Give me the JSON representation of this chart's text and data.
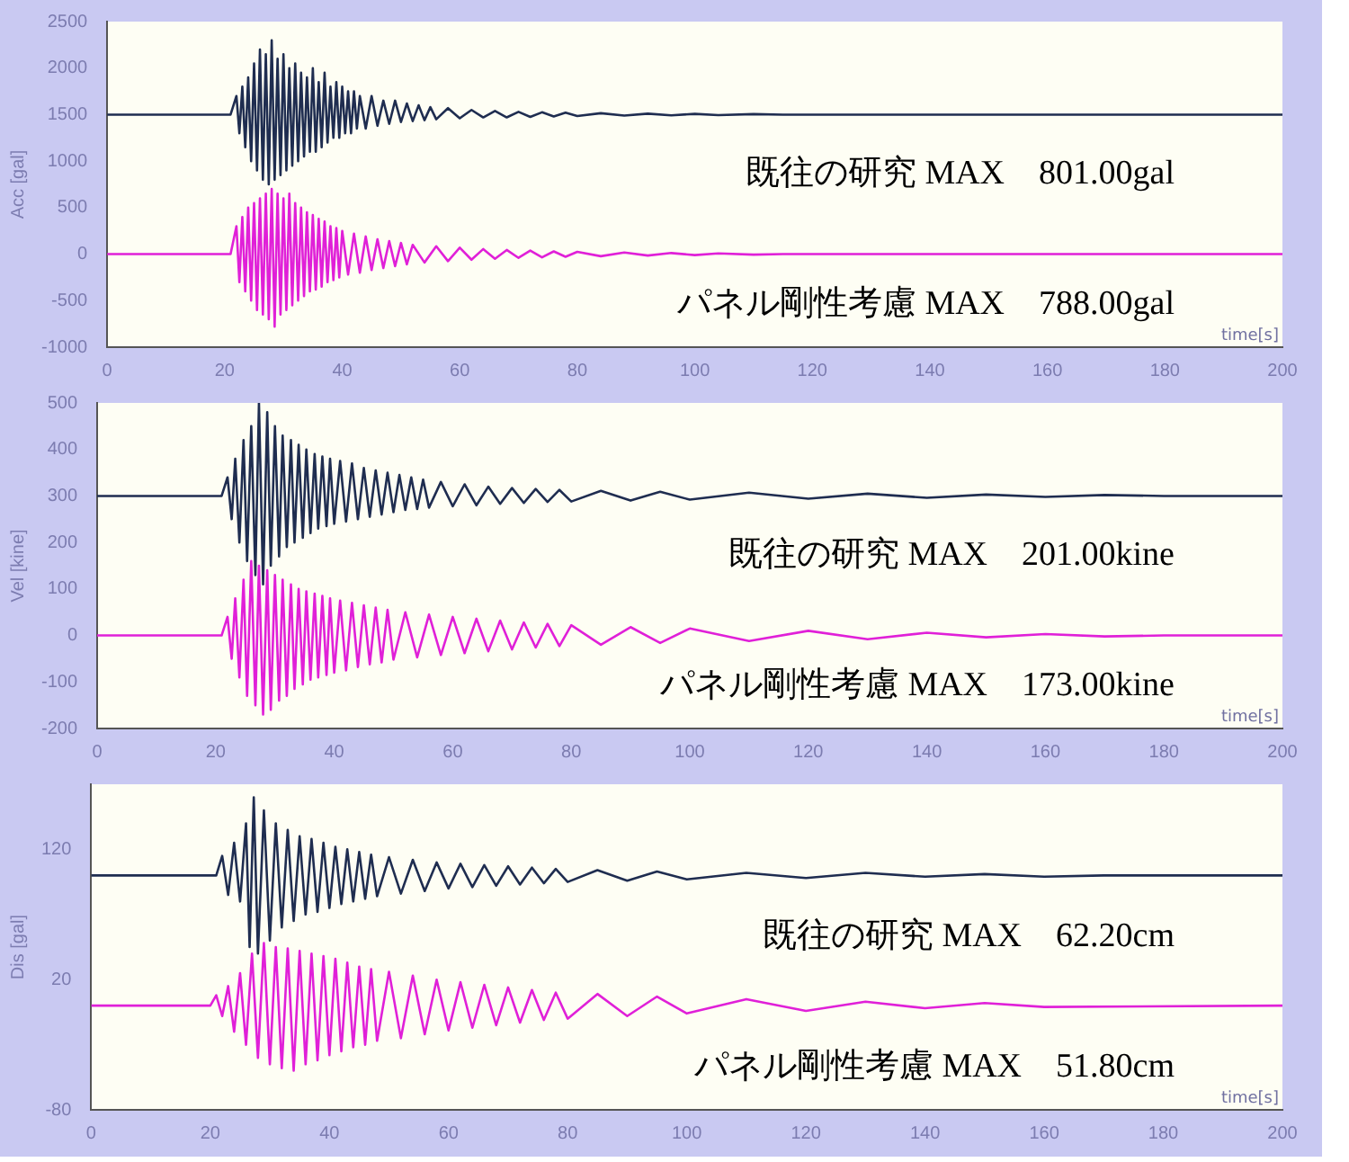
{
  "chart_data": [
    {
      "type": "line",
      "xlabel": "time[s]",
      "ylabel": "Acc [gal]",
      "xlim": [
        0,
        200
      ],
      "xticks": [
        0,
        20,
        40,
        60,
        80,
        100,
        120,
        140,
        160,
        180,
        200
      ],
      "ylim": [
        -1000,
        2500
      ],
      "yticks": [
        -1000,
        -500,
        0,
        500,
        1000,
        1500,
        2000,
        2500
      ],
      "marker": "none",
      "line_style": "solid",
      "annotations": [
        "既往の研究 MAX　801.00gal",
        "パネル剛性考慮 MAX　788.00gal"
      ],
      "series": [
        {
          "color": "#1f2d50",
          "x": [
            0,
            21,
            22,
            22.5,
            23,
            23.5,
            24,
            24.5,
            25,
            25.5,
            26,
            26.5,
            27,
            27.5,
            28,
            28.5,
            29,
            29.5,
            30,
            30.5,
            31,
            31.5,
            32,
            32.5,
            33,
            33.5,
            34,
            34.5,
            35,
            35.5,
            36,
            36.5,
            37,
            37.5,
            38,
            38.5,
            39,
            39.5,
            40,
            40.5,
            41,
            41.5,
            42,
            42.5,
            43,
            44,
            45,
            46,
            47,
            48,
            49,
            50,
            51,
            52,
            53,
            54,
            55,
            56,
            58,
            60,
            62,
            64,
            66,
            68,
            70,
            72,
            74,
            76,
            78,
            80,
            84,
            88,
            92,
            96,
            100,
            104,
            110,
            115,
            200
          ],
          "values": [
            1500,
            1500,
            1700,
            1300,
            1800,
            1150,
            1900,
            1000,
            2050,
            900,
            2200,
            800,
            2150,
            750,
            2300,
            800,
            2100,
            850,
            2150,
            900,
            2000,
            950,
            2050,
            1000,
            1950,
            1050,
            1900,
            1100,
            2000,
            1100,
            1850,
            1150,
            1950,
            1200,
            1800,
            1250,
            1850,
            1250,
            1800,
            1300,
            1750,
            1300,
            1750,
            1350,
            1700,
            1350,
            1700,
            1380,
            1650,
            1400,
            1650,
            1420,
            1620,
            1430,
            1600,
            1440,
            1580,
            1450,
            1570,
            1460,
            1550,
            1470,
            1540,
            1470,
            1530,
            1475,
            1525,
            1480,
            1520,
            1485,
            1515,
            1490,
            1510,
            1492,
            1508,
            1495,
            1505,
            1500,
            1500
          ]
        },
        {
          "color": "#e020d8",
          "x": [
            0,
            21,
            22,
            22.5,
            23,
            23.5,
            24,
            24.5,
            25,
            25.5,
            26,
            26.5,
            27,
            27.5,
            28,
            28.5,
            29,
            29.5,
            30,
            30.5,
            31,
            31.5,
            32,
            32.5,
            33,
            33.5,
            34,
            34.5,
            35,
            35.5,
            36,
            36.5,
            37,
            37.5,
            38,
            38.5,
            39,
            39.5,
            40,
            41,
            42,
            43,
            44,
            45,
            46,
            47,
            48,
            49,
            50,
            51,
            52,
            54,
            56,
            58,
            60,
            62,
            64,
            66,
            68,
            70,
            72,
            74,
            76,
            78,
            80,
            84,
            88,
            92,
            96,
            100,
            104,
            110,
            115,
            200
          ],
          "values": [
            0,
            0,
            300,
            -300,
            400,
            -400,
            500,
            -500,
            550,
            -600,
            600,
            -650,
            650,
            -700,
            700,
            -780,
            650,
            -650,
            600,
            -600,
            650,
            -550,
            550,
            -500,
            500,
            -450,
            450,
            -400,
            420,
            -380,
            380,
            -350,
            350,
            -300,
            300,
            -280,
            280,
            -250,
            250,
            -220,
            220,
            -200,
            190,
            -170,
            160,
            -150,
            140,
            -130,
            120,
            -110,
            100,
            -90,
            85,
            -75,
            70,
            -60,
            55,
            -50,
            45,
            -40,
            38,
            -34,
            30,
            -28,
            25,
            -22,
            18,
            -15,
            12,
            -10,
            8,
            -5,
            0,
            0
          ]
        }
      ]
    },
    {
      "type": "line",
      "xlabel": "time[s]",
      "ylabel": "Vel [kine]",
      "xlim": [
        0,
        200
      ],
      "xticks": [
        0,
        20,
        40,
        60,
        80,
        100,
        120,
        140,
        160,
        180,
        200
      ],
      "ylim": [
        -200,
        500
      ],
      "yticks": [
        -200,
        -100,
        0,
        100,
        200,
        300,
        400,
        500
      ],
      "marker": "none",
      "line_style": "solid",
      "annotations": [
        "既往の研究 MAX　201.00kine",
        "パネル剛性考慮 MAX　173.00kine"
      ],
      "series": [
        {
          "color": "#1f2d50",
          "x": [
            0,
            21,
            22,
            22.7,
            23.3,
            24,
            24.7,
            25.3,
            26,
            26.7,
            27.3,
            28,
            28.7,
            29.3,
            30,
            30.7,
            31.3,
            32,
            32.7,
            33.3,
            34,
            34.7,
            35.3,
            36,
            36.7,
            37.3,
            38,
            38.7,
            39.3,
            40,
            41,
            42,
            43,
            44,
            45,
            46,
            47,
            48,
            49,
            50,
            51,
            52,
            53,
            54,
            55,
            56,
            58,
            60,
            62,
            64,
            66,
            68,
            70,
            72,
            74,
            76,
            78,
            80,
            85,
            90,
            95,
            100,
            110,
            120,
            130,
            140,
            150,
            160,
            170,
            180,
            200
          ],
          "values": [
            300,
            300,
            340,
            250,
            380,
            200,
            420,
            160,
            450,
            130,
            500,
            110,
            480,
            150,
            450,
            170,
            430,
            190,
            420,
            200,
            410,
            210,
            400,
            220,
            390,
            230,
            385,
            235,
            380,
            240,
            375,
            245,
            370,
            250,
            360,
            255,
            355,
            260,
            350,
            265,
            345,
            270,
            340,
            272,
            335,
            275,
            330,
            278,
            325,
            280,
            320,
            283,
            317,
            285,
            315,
            287,
            313,
            288,
            311,
            290,
            309,
            292,
            307,
            294,
            305,
            296,
            303,
            298,
            302,
            300,
            300
          ]
        },
        {
          "color": "#e020d8",
          "x": [
            0,
            21,
            22,
            22.7,
            23.3,
            24,
            24.7,
            25.3,
            26,
            26.7,
            27.3,
            28,
            28.7,
            29.3,
            30,
            30.7,
            31.3,
            32,
            32.7,
            33.3,
            34,
            34.7,
            35.3,
            36,
            36.7,
            37.3,
            38,
            38.7,
            39.3,
            40,
            41,
            42,
            43,
            44,
            45,
            46,
            47,
            48,
            49,
            50,
            52,
            54,
            56,
            58,
            60,
            62,
            64,
            66,
            68,
            70,
            72,
            74,
            76,
            78,
            80,
            85,
            90,
            95,
            100,
            110,
            120,
            130,
            140,
            150,
            160,
            170,
            180,
            200
          ],
          "values": [
            0,
            0,
            40,
            -50,
            80,
            -90,
            120,
            -130,
            160,
            -150,
            150,
            -170,
            140,
            -160,
            130,
            -140,
            120,
            -130,
            110,
            -115,
            100,
            -105,
            95,
            -95,
            90,
            -90,
            85,
            -85,
            80,
            -80,
            75,
            -75,
            70,
            -68,
            65,
            -62,
            60,
            -58,
            55,
            -52,
            50,
            -47,
            45,
            -42,
            40,
            -38,
            36,
            -34,
            32,
            -30,
            28,
            -26,
            25,
            -23,
            22,
            -20,
            18,
            -16,
            15,
            -12,
            10,
            -8,
            6,
            -4,
            3,
            -2,
            0,
            0
          ]
        }
      ]
    },
    {
      "type": "line",
      "xlabel": "time[s]",
      "ylabel": "Dis [gal]",
      "xlim": [
        0,
        200
      ],
      "xticks": [
        0,
        20,
        40,
        60,
        80,
        100,
        120,
        140,
        160,
        180,
        200
      ],
      "ylim": [
        -80,
        170
      ],
      "yticks": [
        -80,
        20,
        120
      ],
      "marker": "none",
      "line_style": "solid",
      "annotations": [
        "既往の研究 MAX　62.20cm",
        "パネル剛性考慮 MAX　51.80cm"
      ],
      "series": [
        {
          "color": "#1f2d50",
          "x": [
            0,
            21,
            22,
            23,
            24,
            25,
            26,
            26.6,
            27.3,
            28,
            29,
            30,
            31,
            32,
            33,
            34,
            35,
            36,
            37,
            38,
            39,
            40,
            41,
            42,
            43,
            44,
            45,
            46,
            47,
            48,
            50,
            52,
            54,
            56,
            58,
            60,
            62,
            64,
            66,
            68,
            70,
            72,
            74,
            76,
            78,
            80,
            85,
            90,
            95,
            100,
            110,
            120,
            130,
            140,
            150,
            160,
            170,
            200
          ],
          "values": [
            100,
            100,
            115,
            85,
            125,
            80,
            140,
            45,
            160,
            40,
            150,
            50,
            140,
            60,
            135,
            65,
            130,
            70,
            128,
            72,
            125,
            75,
            122,
            78,
            120,
            80,
            118,
            82,
            116,
            84,
            114,
            86,
            112,
            88,
            110,
            90,
            109,
            91,
            108,
            92,
            107,
            93,
            106,
            94,
            105,
            95,
            104,
            96,
            103,
            97,
            102,
            98,
            102,
            99,
            101,
            99,
            100,
            100
          ]
        },
        {
          "color": "#e020d8",
          "x": [
            0,
            20,
            21,
            22,
            23,
            24,
            25,
            26,
            27,
            28,
            29,
            30,
            31,
            32,
            33,
            34,
            35,
            36,
            37,
            38,
            39,
            40,
            41,
            42,
            43,
            44,
            45,
            46,
            47,
            48,
            50,
            52,
            54,
            56,
            58,
            60,
            62,
            64,
            66,
            68,
            70,
            72,
            74,
            76,
            78,
            80,
            85,
            90,
            95,
            100,
            110,
            120,
            130,
            140,
            150,
            160,
            200
          ],
          "values": [
            0,
            0,
            8,
            -8,
            15,
            -20,
            25,
            -30,
            40,
            -40,
            48,
            -45,
            45,
            -48,
            44,
            -50,
            42,
            -45,
            40,
            -42,
            38,
            -38,
            36,
            -35,
            33,
            -32,
            30,
            -30,
            28,
            -27,
            26,
            -25,
            23,
            -22,
            20,
            -19,
            18,
            -17,
            16,
            -15,
            14,
            -13,
            12,
            -11,
            10,
            -10,
            9,
            -8,
            7,
            -6,
            5,
            -4,
            3,
            -2,
            2,
            -1,
            0
          ]
        }
      ]
    }
  ]
}
